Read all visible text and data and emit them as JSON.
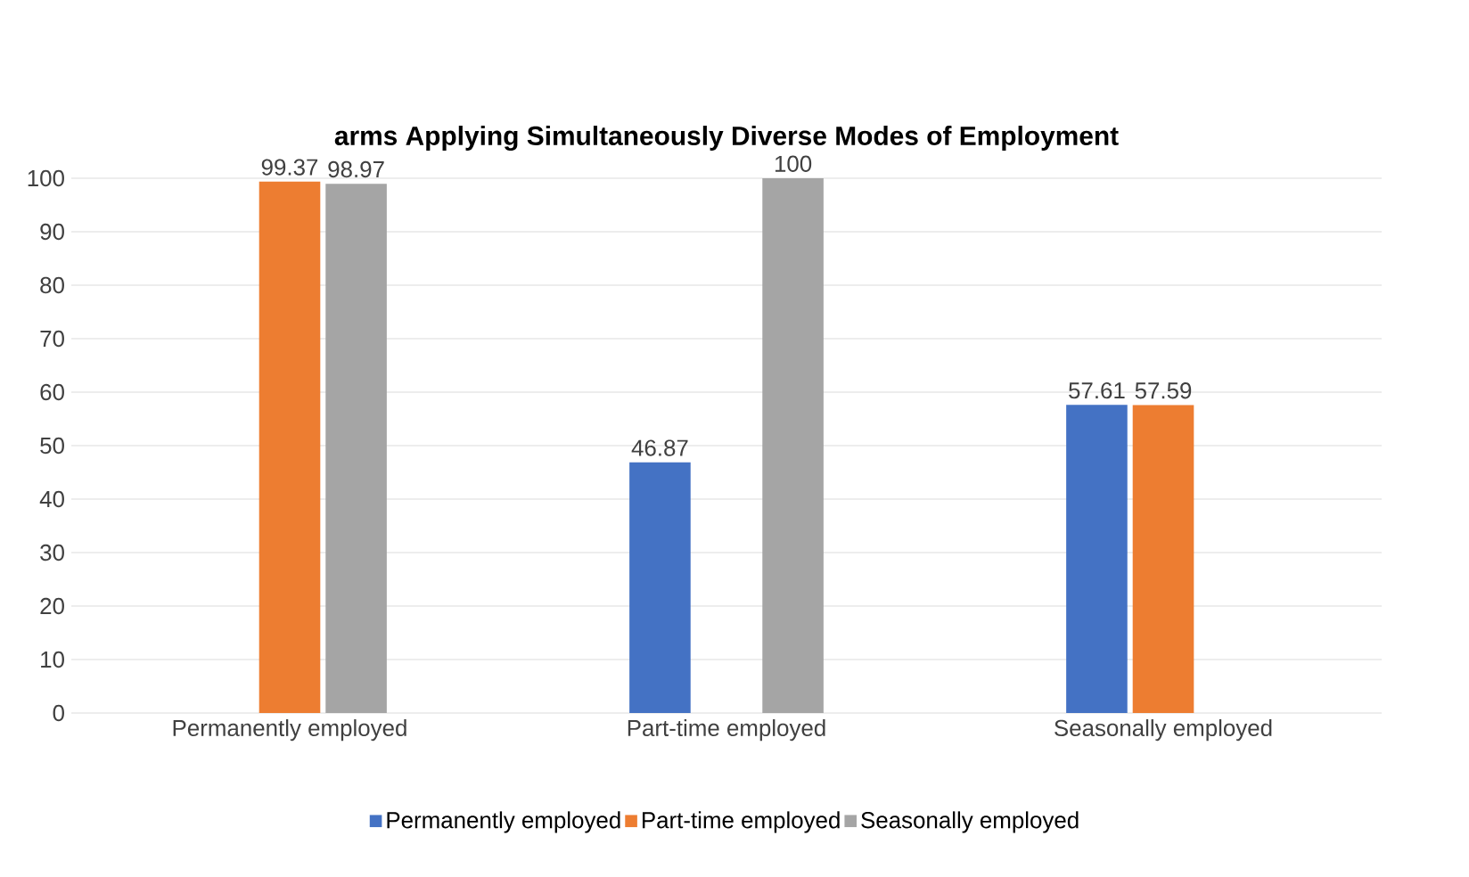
{
  "chart_data": {
    "type": "bar",
    "title": "arms Applying Simultaneously Diverse Modes of Employment",
    "categories": [
      "Permanently employed",
      "Part-time employed",
      "Seasonally employed"
    ],
    "series": [
      {
        "name": "Permanently employed",
        "color": "#4472c4",
        "values": [
          null,
          46.87,
          57.61
        ]
      },
      {
        "name": "Part-time employed",
        "color": "#ed7d31",
        "values": [
          99.37,
          null,
          57.59
        ]
      },
      {
        "name": "Seasonally employed",
        "color": "#a5a5a5",
        "values": [
          98.97,
          100,
          null
        ]
      }
    ],
    "ylim": [
      0,
      100
    ],
    "yticks": [
      0,
      10,
      20,
      30,
      40,
      50,
      60,
      70,
      80,
      90,
      100
    ],
    "grid": "y",
    "legend": "bottom",
    "data_labels": true
  }
}
